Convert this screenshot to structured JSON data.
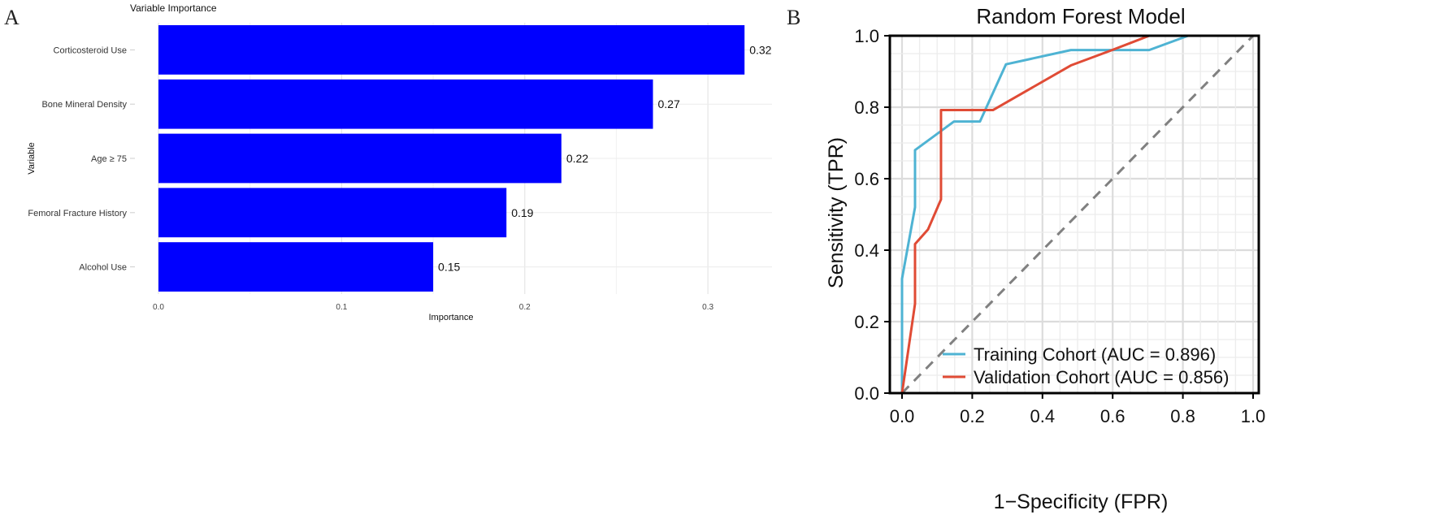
{
  "chart_data": [
    {
      "panel": "A",
      "type": "bar",
      "orientation": "horizontal",
      "title": "Variable Importance",
      "xlabel": "Importance",
      "ylabel": "Variable",
      "categories": [
        "Corticosteroid Use",
        "Bone Mineral Density",
        "Age ≥ 75",
        "Femoral Fracture History",
        "Alcohol Use"
      ],
      "values": [
        0.32,
        0.27,
        0.22,
        0.19,
        0.15
      ],
      "value_labels": [
        "0.32",
        "0.27",
        "0.22",
        "0.19",
        "0.15"
      ],
      "xlim": [
        0,
        0.335
      ],
      "xticks": [
        0.0,
        0.1,
        0.2,
        0.3
      ],
      "xtick_labels": [
        "0.0",
        "0.1",
        "0.2",
        "0.3"
      ],
      "grid": true,
      "bar_color": "#0000ff"
    },
    {
      "panel": "B",
      "type": "line",
      "title": "Random Forest Model",
      "xlabel": "1−Specificity (FPR)",
      "ylabel": "Sensitivity (TPR)",
      "xlim": [
        0,
        1
      ],
      "ylim": [
        0,
        1
      ],
      "ticks": [
        0.0,
        0.2,
        0.4,
        0.6,
        0.8,
        1.0
      ],
      "tick_labels": [
        "0.0",
        "0.2",
        "0.4",
        "0.6",
        "0.8",
        "1.0"
      ],
      "grid": true,
      "legend_position": "bottom-right",
      "series": [
        {
          "name": "Training Cohort (AUC = 0.896)",
          "color": "#4eb3d3",
          "x": [
            0,
            0,
            0.037,
            0.037,
            0.148,
            0.222,
            0.296,
            0.481,
            0.704,
            0.815,
            1.0
          ],
          "y": [
            0,
            0.32,
            0.52,
            0.68,
            0.76,
            0.76,
            0.92,
            0.96,
            0.96,
            1.0,
            1.0
          ]
        },
        {
          "name": "Validation Cohort (AUC = 0.856)",
          "color": "#e04b35",
          "x": [
            0,
            0.037,
            0.037,
            0.074,
            0.111,
            0.111,
            0.259,
            0.481,
            0.593,
            0.704,
            1.0
          ],
          "y": [
            0,
            0.25,
            0.417,
            0.458,
            0.542,
            0.792,
            0.792,
            0.917,
            0.958,
            1.0,
            1.0
          ]
        }
      ],
      "reference_line": {
        "x": [
          0,
          1
        ],
        "y": [
          0,
          1
        ],
        "style": "dashed",
        "color": "#808080"
      }
    }
  ]
}
